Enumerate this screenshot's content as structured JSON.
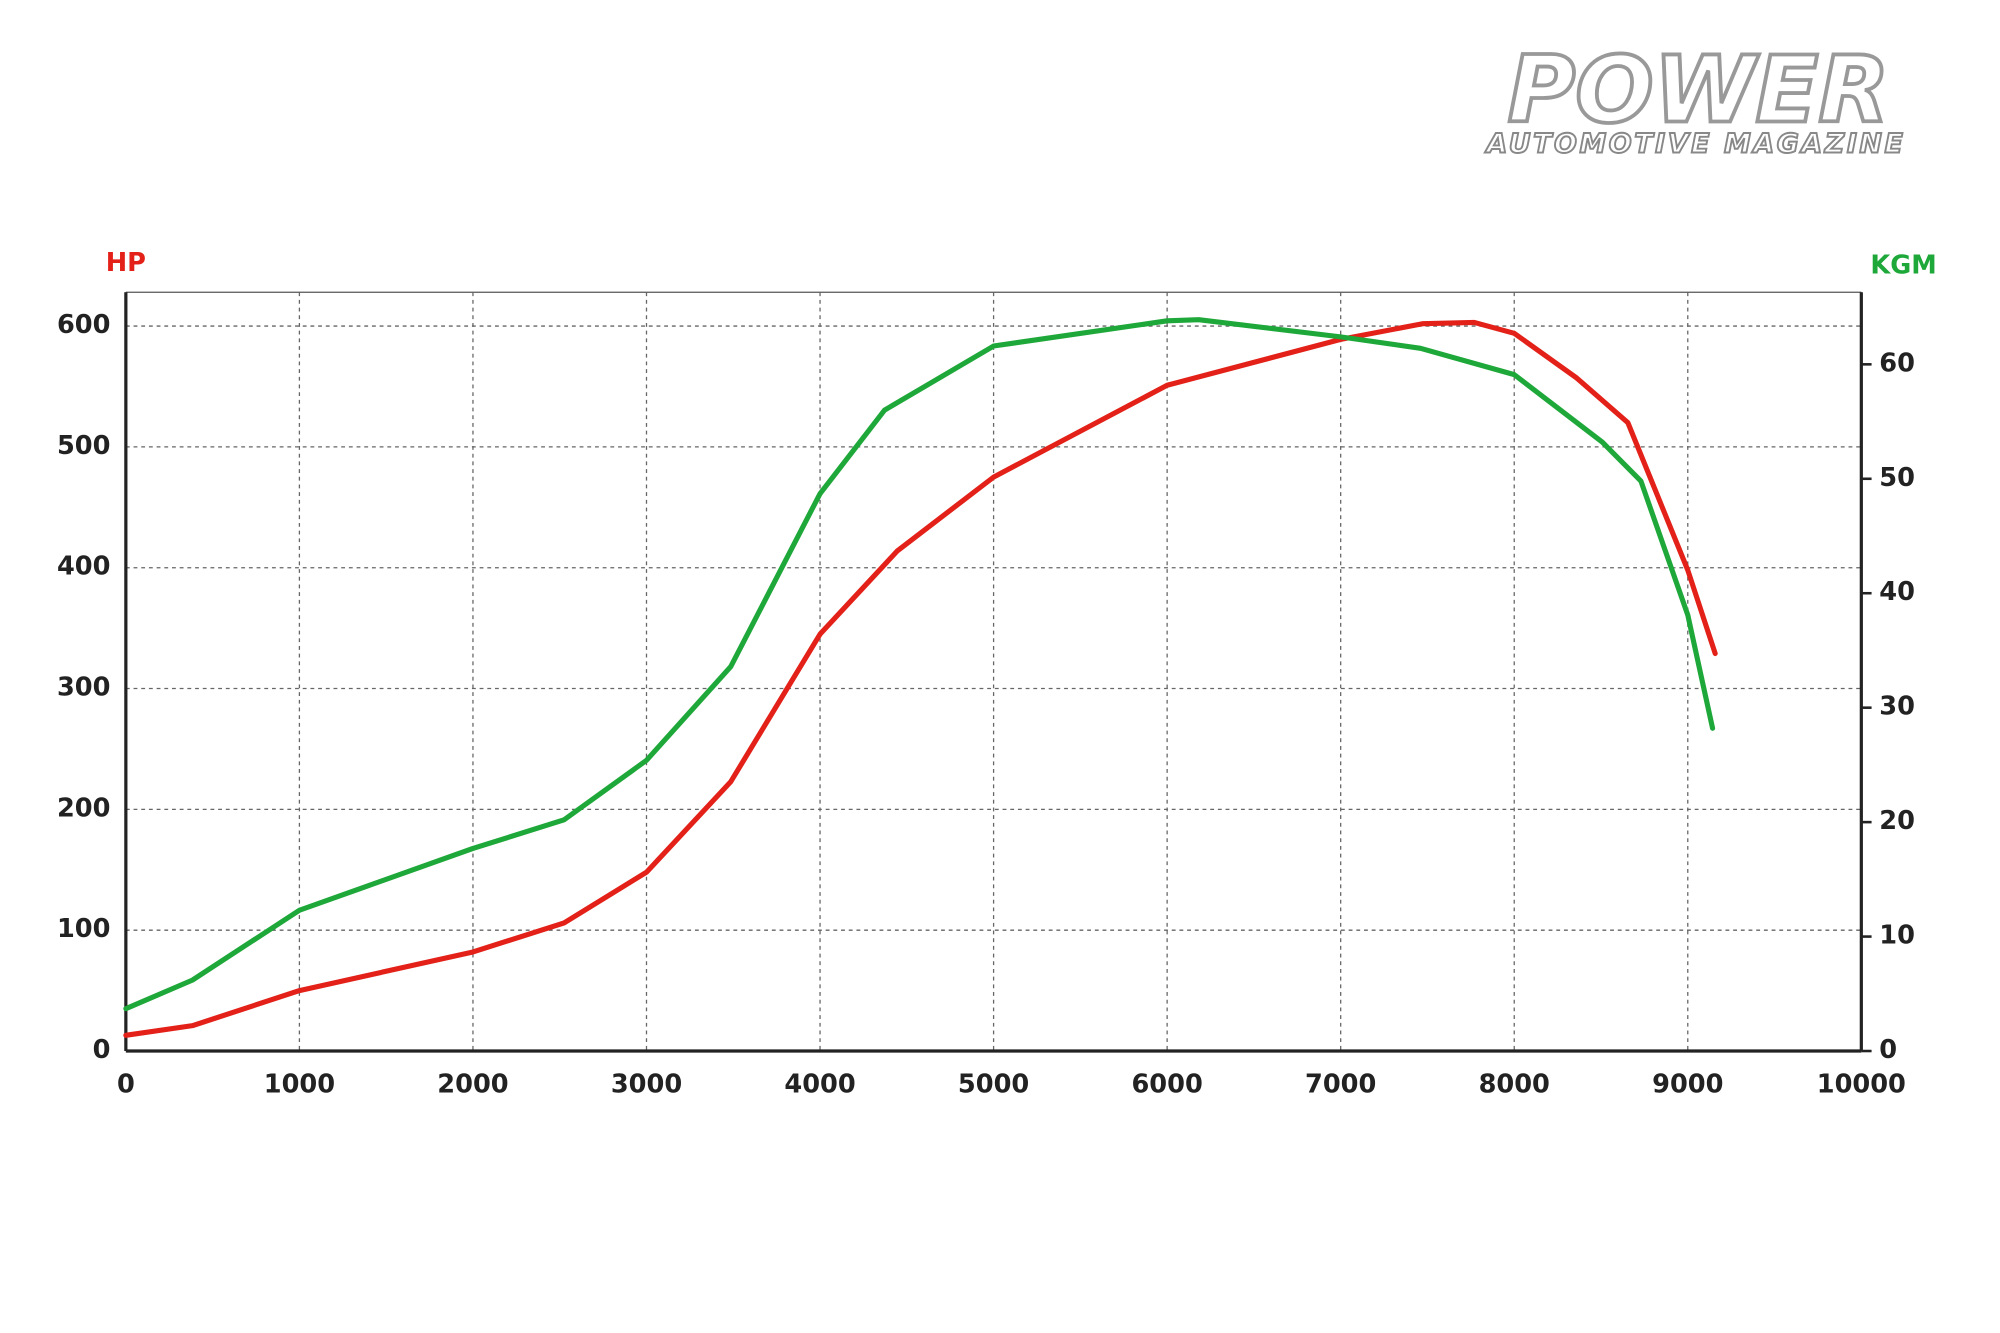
{
  "logo": {
    "title": "POWER",
    "subtitle": "AUTOMOTIVE MAGAZINE"
  },
  "chart_data": {
    "type": "line",
    "y_label": "HP",
    "y2_label": "KGM",
    "xlim": [
      0,
      10000
    ],
    "xticks": [
      0,
      1000,
      2000,
      3000,
      4000,
      5000,
      6000,
      7000,
      8000,
      9000,
      10000
    ],
    "ylim": [
      0,
      628
    ],
    "yticks": [
      0,
      100,
      200,
      300,
      400,
      500,
      600
    ],
    "y2lim": [
      0,
      66.3
    ],
    "y2ticks": [
      0,
      10,
      20,
      30,
      40,
      50,
      60
    ],
    "grid": true,
    "series": [
      {
        "name": "HP",
        "color": "#e32119",
        "x": [
          0,
          384,
          1000,
          2000,
          2525,
          3000,
          3486,
          4000,
          4446,
          5000,
          6000,
          7000,
          7475,
          7770,
          8000,
          8360,
          8655,
          9000,
          9158
        ],
        "values": [
          13,
          21,
          50,
          82,
          106,
          148,
          223,
          345,
          414,
          475,
          551,
          589,
          602,
          603,
          594,
          557,
          520,
          398,
          329
        ]
      },
      {
        "name": "KGM",
        "color": "#1fa83a",
        "axis": "y2",
        "x": [
          0,
          384,
          1000,
          2000,
          2525,
          3000,
          3486,
          4000,
          4372,
          5000,
          6000,
          6182,
          7000,
          7460,
          8000,
          8508,
          8730,
          9000,
          9143
        ],
        "values": [
          3.7,
          6.2,
          12.3,
          17.7,
          20.2,
          25.4,
          33.6,
          48.7,
          56,
          61.6,
          63.8,
          63.9,
          62.4,
          61.4,
          59.1,
          53.2,
          49.8,
          38.1,
          28.2
        ]
      }
    ]
  }
}
